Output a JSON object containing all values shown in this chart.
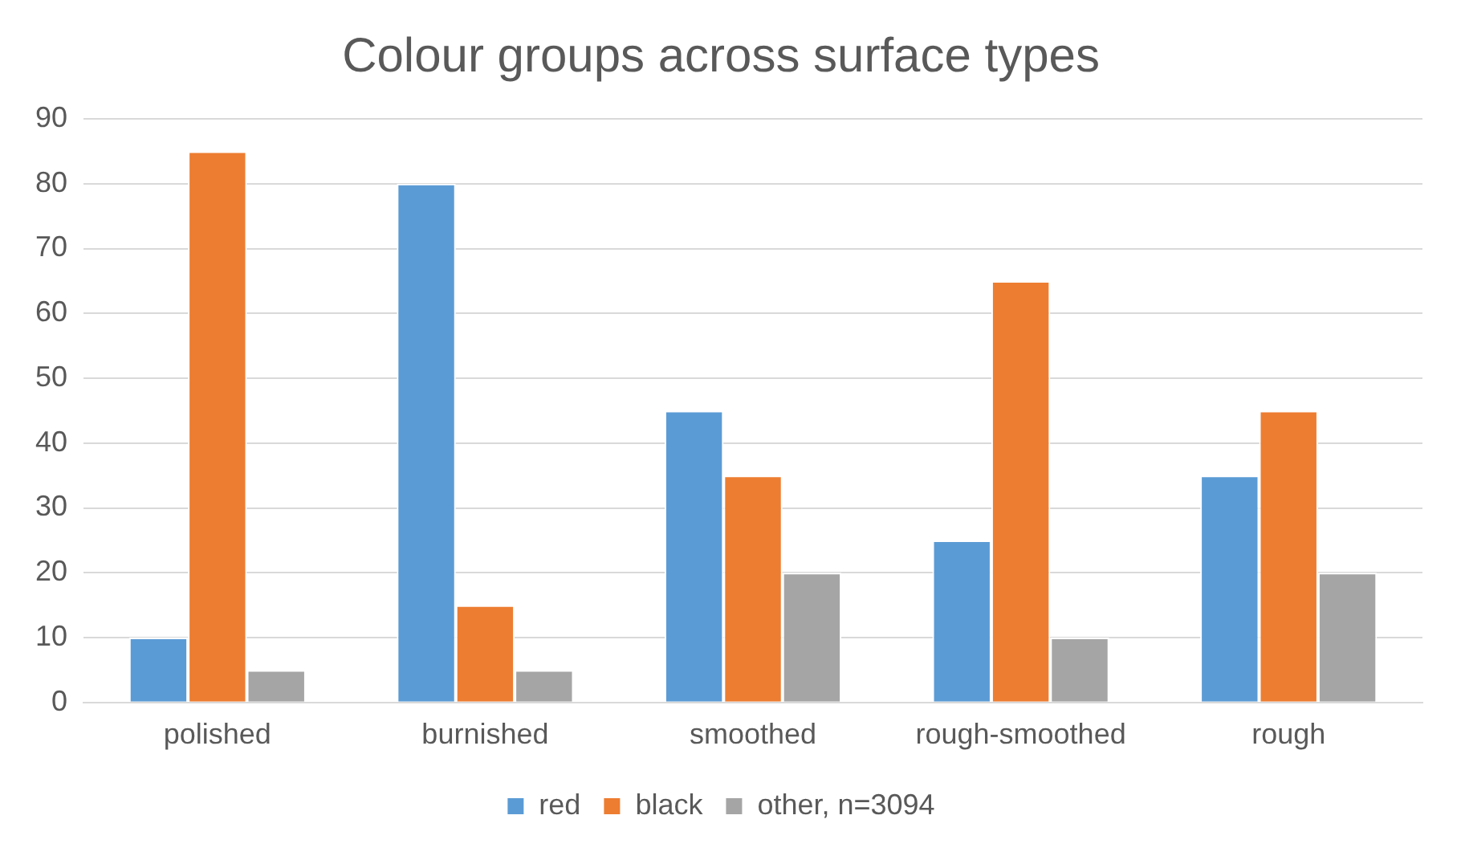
{
  "chart_data": {
    "type": "bar",
    "title": "Colour groups across surface types",
    "categories": [
      "polished",
      "burnished",
      "smoothed",
      "rough-smoothed",
      "rough"
    ],
    "series": [
      {
        "name": "red",
        "color": "#5b9bd5",
        "values": [
          10,
          80,
          45,
          25,
          35
        ]
      },
      {
        "name": "black",
        "color": "#ed7d31",
        "values": [
          85,
          15,
          35,
          65,
          45
        ]
      },
      {
        "name": "other, n=3094",
        "color": "#a5a5a5",
        "values": [
          5,
          5,
          20,
          10,
          20
        ]
      }
    ],
    "ylim": [
      0,
      90
    ],
    "yticks": [
      0,
      10,
      20,
      30,
      40,
      50,
      60,
      70,
      80,
      90
    ],
    "grid": "y",
    "legend": "bottom"
  }
}
